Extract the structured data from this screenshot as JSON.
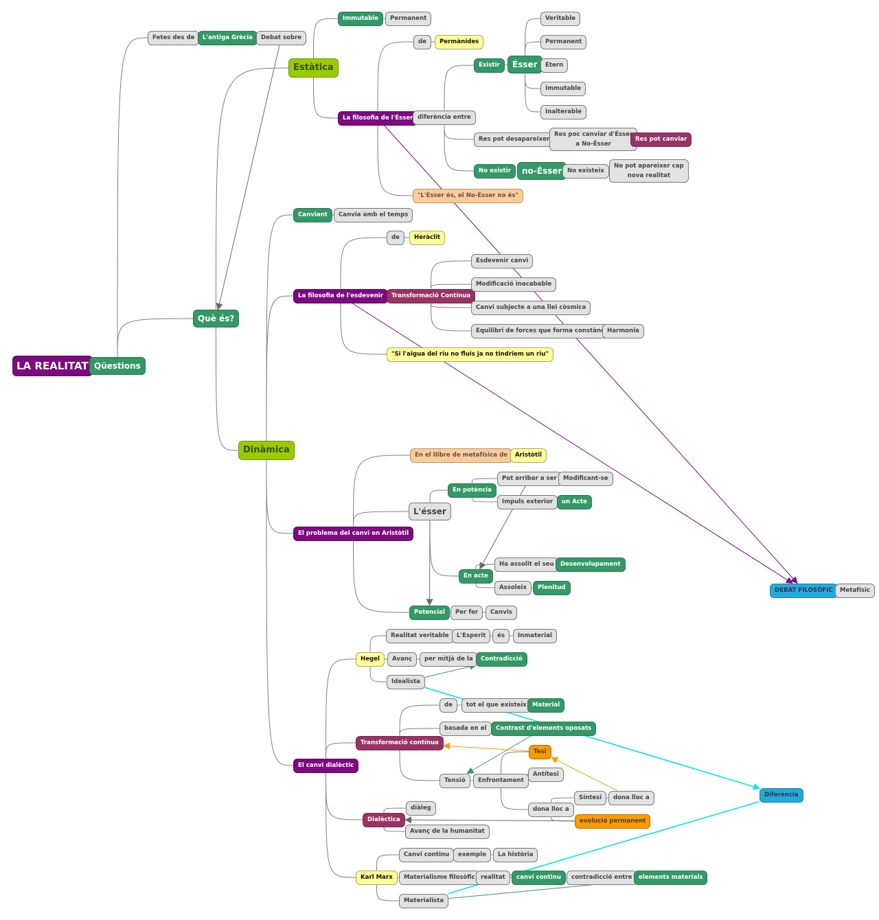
{
  "colors": {
    "purple": "#7d0a80",
    "green": "#339966",
    "maroon": "#993366",
    "lime": "#99cc00",
    "yellow": "#ffff99",
    "peach": "#ffcc99",
    "orange": "#ff9900",
    "blue": "#22aadd",
    "gray": "#e2e2e2",
    "cyan": "#00e5ee"
  },
  "nodes": {
    "root": {
      "text": "LA REALITAT",
      "style": "purple root"
    },
    "q": {
      "text": "Qüestions",
      "style": "green big"
    },
    "fetes": {
      "text": "Fetes des de",
      "style": "gray"
    },
    "grecia": {
      "text": "L'antiga Grècia",
      "style": "green"
    },
    "debat": {
      "text": "Debat sobre",
      "style": "gray"
    },
    "queEs": {
      "text": "Què és?",
      "style": "green big"
    },
    "estatica": {
      "text": "Estàtica",
      "style": "lime"
    },
    "dinamica": {
      "text": "Dinàmica",
      "style": "lime"
    },
    "immutable1": {
      "text": "Immutable",
      "style": "green"
    },
    "perm1": {
      "text": "Permanent",
      "style": "gray"
    },
    "filoEsser": {
      "text": "La filosofia de l'Ésser",
      "style": "purple"
    },
    "de1": {
      "text": "de",
      "style": "gray"
    },
    "parmenides": {
      "text": "Permànides",
      "style": "yellow"
    },
    "difer": {
      "text": "diferència entre",
      "style": "gray"
    },
    "existir": {
      "text": "Existir",
      "style": "green"
    },
    "esser": {
      "text": "Ésser",
      "style": "green big"
    },
    "veritable": {
      "text": "Veritable",
      "style": "gray"
    },
    "perm2": {
      "text": "Permanent",
      "style": "gray"
    },
    "etern": {
      "text": "Etern",
      "style": "gray"
    },
    "immutable2": {
      "text": "Immutable",
      "style": "gray"
    },
    "inalterable": {
      "text": "Inalterable",
      "style": "gray"
    },
    "resDes": {
      "text": "Res pot desapareixer",
      "style": "gray"
    },
    "resPoc": {
      "text": "Res poc canviar d'Ésser\na No-Ésser",
      "style": "gray two"
    },
    "resPotCanviar": {
      "text": "Res pot canviar",
      "style": "maroon"
    },
    "noExistir": {
      "text": "No existir",
      "style": "green"
    },
    "noEsser": {
      "text": "no-Ésser",
      "style": "green big"
    },
    "noExisteix": {
      "text": "No existeix",
      "style": "gray"
    },
    "noPot": {
      "text": "No pot apareixer cap\nnova realitat",
      "style": "gray two"
    },
    "quote1": {
      "text": "\"L'Ésser és, el No-Ésser no és\"",
      "style": "peach"
    },
    "canviant": {
      "text": "Canviant",
      "style": "green"
    },
    "canviaTemps": {
      "text": "Canvia amb el temps",
      "style": "gray"
    },
    "filoEsdev": {
      "text": "La filosofia de l'esdevenir",
      "style": "purple"
    },
    "de2": {
      "text": "de",
      "style": "gray"
    },
    "heraclit": {
      "text": "Heràclit",
      "style": "yellow"
    },
    "transCont1": {
      "text": "Transformació Contínua",
      "style": "maroon"
    },
    "esdevCanvi": {
      "text": "Esdevenir canvi",
      "style": "gray"
    },
    "modif": {
      "text": "Modificació inacabable",
      "style": "gray"
    },
    "canviSubj": {
      "text": "Canvi subjecte a una llei còsmica",
      "style": "gray"
    },
    "equilibri": {
      "text": "Equilibri de forces que forma constància",
      "style": "gray"
    },
    "harmonia": {
      "text": "Harmonia",
      "style": "gray"
    },
    "quote2": {
      "text": "\"Si l'aigua del riu no fluís ja no tindriem un riu\"",
      "style": "yellow"
    },
    "problema": {
      "text": "El problema del canvi en Aristòtil",
      "style": "purple"
    },
    "llibre": {
      "text": "En el llibre de metafísica de",
      "style": "peach"
    },
    "aristotil": {
      "text": "Aristòtil",
      "style": "yellow"
    },
    "lesser": {
      "text": "L'ésser",
      "style": "gray big"
    },
    "enPot": {
      "text": "En potència",
      "style": "green"
    },
    "potArribar": {
      "text": "Pot arribar a ser",
      "style": "gray"
    },
    "modificant": {
      "text": "Modificant-se",
      "style": "gray"
    },
    "impuls": {
      "text": "Impuls exterior",
      "style": "gray"
    },
    "unActe": {
      "text": "un Acte",
      "style": "green"
    },
    "enActe": {
      "text": "En acte",
      "style": "green"
    },
    "haAssolit": {
      "text": "Ha assolit el seu",
      "style": "gray"
    },
    "desenvol": {
      "text": "Desenvolupament",
      "style": "green"
    },
    "assoleix": {
      "text": "Assoleix",
      "style": "gray"
    },
    "plenitud": {
      "text": "Plenitud",
      "style": "green"
    },
    "potencial": {
      "text": "Potencial",
      "style": "green"
    },
    "perFer": {
      "text": "Per fer",
      "style": "gray"
    },
    "canvis": {
      "text": "Canvis",
      "style": "gray"
    },
    "debatFilo": {
      "text": "DEBAT FILOSÒFIC",
      "style": "blue"
    },
    "metafisic": {
      "text": "Metafísic",
      "style": "gray"
    },
    "canviDial": {
      "text": "El canvi dialèctic",
      "style": "purple"
    },
    "hegel": {
      "text": "Hegel",
      "style": "yellow"
    },
    "realVer": {
      "text": "Realitat veritable",
      "style": "gray"
    },
    "esperit": {
      "text": "L'Esperit",
      "style": "gray"
    },
    "es": {
      "text": "és",
      "style": "gray"
    },
    "inmaterial": {
      "text": "Inmaterial",
      "style": "gray"
    },
    "avanc": {
      "text": "Avanç",
      "style": "gray"
    },
    "perMitja": {
      "text": "per mitjà de la",
      "style": "gray"
    },
    "contrad": {
      "text": "Contradicció",
      "style": "green"
    },
    "idealista": {
      "text": "Idealista",
      "style": "gray"
    },
    "de3": {
      "text": "de",
      "style": "gray"
    },
    "totQue": {
      "text": "tot el que existeix",
      "style": "gray"
    },
    "material": {
      "text": "Material",
      "style": "green"
    },
    "basada": {
      "text": "basada en el",
      "style": "gray"
    },
    "contrast": {
      "text": "Contrast d'elements oposats",
      "style": "green"
    },
    "transCont2": {
      "text": "Transformació contínua",
      "style": "maroon"
    },
    "tesi": {
      "text": "Tesi",
      "style": "orange"
    },
    "tensio": {
      "text": "Tensió",
      "style": "gray"
    },
    "enfront": {
      "text": "Enfrontament",
      "style": "gray"
    },
    "antitesi": {
      "text": "Antítesi",
      "style": "gray"
    },
    "sintesi": {
      "text": "Síntesi",
      "style": "gray"
    },
    "donaLloc2": {
      "text": "dona lloc a",
      "style": "gray"
    },
    "donaLloc1": {
      "text": "dona lloc a",
      "style": "gray"
    },
    "evolucio": {
      "text": "evolució permanent",
      "style": "orange"
    },
    "dialectica": {
      "text": "Dialèctica",
      "style": "maroon"
    },
    "dialeg": {
      "text": "diàleg",
      "style": "gray"
    },
    "avancHum": {
      "text": "Avanç de la humanitat",
      "style": "gray"
    },
    "diferencia": {
      "text": "Diferència",
      "style": "blue"
    },
    "karl": {
      "text": "Karl Marx",
      "style": "yellow"
    },
    "canviCont": {
      "text": "Canvi continu",
      "style": "gray"
    },
    "exemple": {
      "text": "exemple",
      "style": "gray"
    },
    "historia": {
      "text": "La història",
      "style": "gray"
    },
    "materialismeF": {
      "text": "Materialisme filosòfic",
      "style": "gray"
    },
    "realitat": {
      "text": "realitat",
      "style": "gray"
    },
    "canviContinu": {
      "text": "canvi continu",
      "style": "green"
    },
    "contradEntre": {
      "text": "contradicció entre",
      "style": "gray"
    },
    "elemMat": {
      "text": "elements materials",
      "style": "green"
    },
    "materialista": {
      "text": "Materialista",
      "style": "gray"
    }
  },
  "tree": [
    [
      "root",
      "q"
    ],
    [
      "q",
      "fetes"
    ],
    [
      "fetes",
      "grecia"
    ],
    [
      "grecia",
      "debat"
    ],
    [
      "q",
      "queEs"
    ],
    [
      "queEs",
      "estatica"
    ],
    [
      "queEs",
      "dinamica"
    ],
    [
      "estatica",
      "immutable1"
    ],
    [
      "immutable1",
      "perm1"
    ],
    [
      "estatica",
      "filoEsser"
    ],
    [
      "filoEsser",
      "de1"
    ],
    [
      "de1",
      "parmenides"
    ],
    [
      "filoEsser",
      "difer"
    ],
    [
      "filoEsser",
      "quote1"
    ],
    [
      "difer",
      "existir"
    ],
    [
      "existir",
      "esser"
    ],
    [
      "esser",
      "veritable"
    ],
    [
      "esser",
      "perm2"
    ],
    [
      "esser",
      "etern"
    ],
    [
      "esser",
      "immutable2"
    ],
    [
      "esser",
      "inalterable"
    ],
    [
      "difer",
      "resDes"
    ],
    [
      "resDes",
      "resPoc"
    ],
    [
      "resPoc",
      "resPotCanviar"
    ],
    [
      "difer",
      "noExistir"
    ],
    [
      "noExistir",
      "noEsser"
    ],
    [
      "noEsser",
      "noExisteix"
    ],
    [
      "noExisteix",
      "noPot"
    ],
    [
      "dinamica",
      "canviant"
    ],
    [
      "canviant",
      "canviaTemps"
    ],
    [
      "dinamica",
      "filoEsdev"
    ],
    [
      "filoEsdev",
      "de2"
    ],
    [
      "de2",
      "heraclit"
    ],
    [
      "filoEsdev",
      "transCont1"
    ],
    [
      "filoEsdev",
      "quote2"
    ],
    [
      "transCont1",
      "esdevCanvi"
    ],
    [
      "transCont1",
      "modif"
    ],
    [
      "transCont1",
      "canviSubj"
    ],
    [
      "transCont1",
      "equilibri"
    ],
    [
      "equilibri",
      "harmonia"
    ],
    [
      "dinamica",
      "problema"
    ],
    [
      "problema",
      "llibre"
    ],
    [
      "llibre",
      "aristotil"
    ],
    [
      "problema",
      "lesser"
    ],
    [
      "problema",
      "potencial"
    ],
    [
      "lesser",
      "enPot"
    ],
    [
      "lesser",
      "enActe"
    ],
    [
      "enPot",
      "potArribar"
    ],
    [
      "potArribar",
      "modificant"
    ],
    [
      "enPot",
      "impuls"
    ],
    [
      "impuls",
      "unActe"
    ],
    [
      "enActe",
      "haAssolit"
    ],
    [
      "haAssolit",
      "desenvol"
    ],
    [
      "enActe",
      "assoleix"
    ],
    [
      "assoleix",
      "plenitud"
    ],
    [
      "potencial",
      "perFer"
    ],
    [
      "perFer",
      "canvis"
    ],
    [
      "debatFilo",
      "metafisic"
    ],
    [
      "dinamica",
      "canviDial"
    ],
    [
      "canviDial",
      "hegel"
    ],
    [
      "hegel",
      "realVer"
    ],
    [
      "realVer",
      "esperit"
    ],
    [
      "esperit",
      "es"
    ],
    [
      "es",
      "inmaterial"
    ],
    [
      "hegel",
      "avanc"
    ],
    [
      "avanc",
      "perMitja"
    ],
    [
      "perMitja",
      "contrad"
    ],
    [
      "hegel",
      "idealista"
    ],
    [
      "canviDial",
      "transCont2"
    ],
    [
      "transCont2",
      "de3"
    ],
    [
      "de3",
      "totQue"
    ],
    [
      "totQue",
      "material"
    ],
    [
      "transCont2",
      "basada"
    ],
    [
      "basada",
      "contrast"
    ],
    [
      "transCont2",
      "tensio"
    ],
    [
      "tensio",
      "enfront"
    ],
    [
      "enfront",
      "tesi"
    ],
    [
      "enfront",
      "antitesi"
    ],
    [
      "enfront",
      "donaLloc1"
    ],
    [
      "donaLloc1",
      "sintesi"
    ],
    [
      "sintesi",
      "donaLloc2"
    ],
    [
      "donaLloc1",
      "evolucio"
    ],
    [
      "canviDial",
      "dialectica"
    ],
    [
      "dialectica",
      "dialeg"
    ],
    [
      "dialectica",
      "avancHum"
    ],
    [
      "canviDial",
      "karl"
    ],
    [
      "karl",
      "canviCont"
    ],
    [
      "canviCont",
      "exemple"
    ],
    [
      "exemple",
      "historia"
    ],
    [
      "karl",
      "materialismeF"
    ],
    [
      "materialismeF",
      "realitat"
    ],
    [
      "realitat",
      "canviContinu"
    ],
    [
      "canviContinu",
      "contradEntre"
    ],
    [
      "contradEntre",
      "elemMat"
    ],
    [
      "karl",
      "materialista"
    ]
  ],
  "links": [
    {
      "from": "debat",
      "to": "queEs",
      "color": "gray",
      "arrow": true
    },
    {
      "from": "filoEsser",
      "to": "debatFilo",
      "color": "purple",
      "arrow": true
    },
    {
      "from": "filoEsdev",
      "to": "debatFilo",
      "color": "purple",
      "arrow": true
    },
    {
      "from": "lesser",
      "to": "potencial",
      "color": "gray",
      "arrow": true
    },
    {
      "from": "potArribar",
      "to": "enActe",
      "color": "gray",
      "arrow": true
    },
    {
      "from": "idealista",
      "to": "contrad",
      "color": "green",
      "arrow": true
    },
    {
      "from": "idealista",
      "to": "diferencia",
      "color": "cyan",
      "arrow": true
    },
    {
      "from": "materialista",
      "to": "diferencia",
      "color": "cyan",
      "arrow": false
    },
    {
      "from": "contrast",
      "to": "tensio",
      "color": "green",
      "arrow": true
    },
    {
      "from": "tesi",
      "to": "transCont2",
      "color": "orange",
      "arrow": true
    },
    {
      "from": "donaLloc2",
      "to": "tesi",
      "color": "orange",
      "arrow": true
    },
    {
      "from": "evolucio",
      "to": "dialectica",
      "color": "gray",
      "arrow": true
    },
    {
      "from": "materialista",
      "to": "elemMat",
      "color": "green",
      "arrow": true
    }
  ]
}
